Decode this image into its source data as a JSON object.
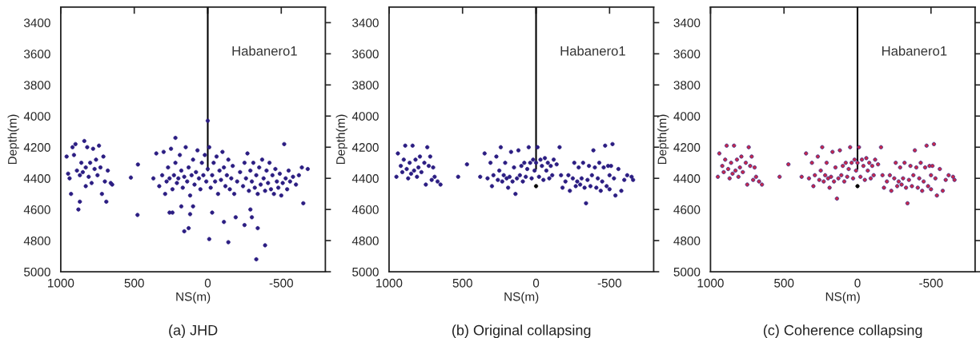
{
  "chart_data": [
    {
      "type": "scatter",
      "title": "(a) JHD",
      "xlabel": "NS(m)",
      "ylabel": "Depth(m)",
      "xlim": [
        1000,
        -800
      ],
      "ylim": [
        5000,
        3300
      ],
      "xticks": [
        1000,
        500,
        0,
        -500
      ],
      "yticks": [
        3400,
        3600,
        3800,
        4000,
        4200,
        4400,
        4600,
        4800,
        5000
      ],
      "grid": false,
      "annotations": [
        "Habanero1"
      ],
      "series": [
        {
          "type": "line",
          "color": "#000000",
          "x": [
            0,
            0
          ],
          "values": [
            3300,
            4350
          ]
        },
        {
          "color": "#2b1d82",
          "marker": "circle",
          "x": [
            960,
            950,
            940,
            930,
            920,
            910,
            900,
            890,
            880,
            870,
            860,
            850,
            840,
            830,
            820,
            810,
            800,
            790,
            780,
            770,
            760,
            750,
            740,
            730,
            720,
            710,
            700,
            690,
            680,
            660,
            650,
            830,
            870,
            523,
            475,
            478,
            370,
            350,
            330,
            310,
            300,
            290,
            280,
            270,
            260,
            250,
            240,
            230,
            220,
            210,
            200,
            190,
            180,
            170,
            160,
            150,
            140,
            130,
            120,
            110,
            100,
            90,
            80,
            70,
            60,
            50,
            40,
            30,
            20,
            10,
            0,
            -10,
            -20,
            -30,
            -40,
            -50,
            -60,
            -70,
            -80,
            -90,
            -100,
            -110,
            -120,
            -130,
            -140,
            -150,
            -160,
            -170,
            -180,
            -200,
            -220,
            -240,
            -250,
            -260,
            -270,
            -280,
            -290,
            -300,
            -310,
            -320,
            -330,
            -340,
            -350,
            -360,
            -370,
            -380,
            -390,
            -400,
            -410,
            -420,
            -430,
            -440,
            -450,
            -460,
            -470,
            -480,
            -490,
            -500,
            -510,
            -520,
            -530,
            -540,
            -550,
            -560,
            -580,
            -600,
            -620,
            -640,
            -650,
            -680,
            260,
            240,
            180,
            160,
            130,
            120,
            100,
            -10,
            -30,
            -110,
            -140,
            -190,
            -250,
            -330,
            -340,
            -390,
            -290,
            -300,
            0,
            220
          ],
          "values": [
            4260,
            4370,
            4400,
            4500,
            4200,
            4250,
            4180,
            4350,
            4600,
            4380,
            4300,
            4360,
            4160,
            4330,
            4200,
            4390,
            4300,
            4430,
            4210,
            4340,
            4280,
            4380,
            4190,
            4330,
            4500,
            4260,
            4420,
            4550,
            4350,
            4430,
            4440,
            4450,
            4550,
            4395,
            4311,
            4635,
            4400,
            4240,
            4450,
            4380,
            4230,
            4500,
            4420,
            4330,
            4400,
            4210,
            4470,
            4380,
            4300,
            4430,
            4400,
            4250,
            4350,
            4460,
            4390,
            4200,
            4420,
            4330,
            4510,
            4380,
            4280,
            4440,
            4360,
            4220,
            4400,
            4470,
            4300,
            4380,
            4250,
            4420,
            4340,
            4200,
            4460,
            4380,
            4300,
            4420,
            4260,
            4500,
            4350,
            4410,
            4230,
            4330,
            4450,
            4380,
            4280,
            4470,
            4400,
            4320,
            4500,
            4420,
            4360,
            4450,
            4300,
            4400,
            4240,
            4480,
            4350,
            4420,
            4300,
            4460,
            4380,
            4500,
            4330,
            4440,
            4280,
            4400,
            4480,
            4350,
            4430,
            4300,
            4470,
            4380,
            4500,
            4340,
            4420,
            4460,
            4370,
            4510,
            4430,
            4180,
            4400,
            4470,
            4350,
            4420,
            4390,
            4440,
            4380,
            4330,
            4560,
            4340,
            4620,
            4620,
            4580,
            4740,
            4720,
            4630,
            4580,
            4790,
            4620,
            4680,
            4810,
            4650,
            4700,
            4920,
            4720,
            4830,
            4600,
            4650,
            4030,
            4140
          ]
        }
      ]
    },
    {
      "type": "scatter",
      "title": "(b) Original collapsing",
      "xlabel": "NS(m)",
      "ylabel": "Depth(m)",
      "xlim": [
        1000,
        -800
      ],
      "ylim": [
        5000,
        3300
      ],
      "xticks": [
        1000,
        500,
        0,
        -500
      ],
      "yticks": [
        3400,
        3600,
        3800,
        4000,
        4200,
        4400,
        4600,
        4800,
        5000
      ],
      "grid": false,
      "annotations": [
        "Habanero1"
      ],
      "series": [
        {
          "type": "line",
          "color": "#000000",
          "x": [
            0,
            0
          ],
          "values": [
            3300,
            4340
          ]
        },
        {
          "color": "#2b1d82",
          "marker": "circle",
          "x": [
            950,
            940,
            920,
            910,
            900,
            890,
            880,
            870,
            860,
            850,
            840,
            830,
            820,
            810,
            800,
            790,
            780,
            760,
            750,
            740,
            730,
            720,
            710,
            700,
            690,
            670,
            650,
            530,
            470,
            380,
            350,
            330,
            310,
            300,
            290,
            270,
            260,
            250,
            240,
            230,
            220,
            210,
            200,
            190,
            180,
            170,
            160,
            150,
            140,
            130,
            120,
            110,
            100,
            90,
            80,
            70,
            60,
            50,
            40,
            30,
            20,
            10,
            0,
            -10,
            -20,
            -30,
            -40,
            -50,
            -60,
            -70,
            -80,
            -90,
            -100,
            -110,
            -120,
            -140,
            -160,
            -170,
            -180,
            -200,
            -220,
            -230,
            -250,
            -260,
            -270,
            -280,
            -290,
            -300,
            -310,
            -320,
            -330,
            -340,
            -350,
            -360,
            -370,
            -380,
            -390,
            -400,
            -410,
            -420,
            -430,
            -440,
            -450,
            -460,
            -470,
            -480,
            -490,
            -500,
            -510,
            -520,
            -530,
            -540,
            -560,
            -580,
            -620,
            -650,
            -660,
            -600,
            -500
          ],
          "values": [
            4390,
            4240,
            4320,
            4360,
            4280,
            4190,
            4340,
            4400,
            4300,
            4370,
            4190,
            4350,
            4280,
            4390,
            4330,
            4260,
            4360,
            4300,
            4440,
            4200,
            4320,
            4260,
            4410,
            4330,
            4390,
            4420,
            4440,
            4390,
            4310,
            4390,
            4240,
            4400,
            4300,
            4450,
            4380,
            4260,
            4410,
            4350,
            4200,
            4420,
            4380,
            4300,
            4400,
            4460,
            4390,
            4230,
            4420,
            4330,
            4500,
            4400,
            4220,
            4380,
            4320,
            4420,
            4300,
            4390,
            4340,
            4200,
            4300,
            4400,
            4280,
            4350,
            4300,
            4200,
            4390,
            4280,
            4320,
            4410,
            4270,
            4350,
            4300,
            4400,
            4320,
            4380,
            4280,
            4310,
            4200,
            4380,
            4460,
            4420,
            4380,
            4480,
            4400,
            4300,
            4450,
            4420,
            4330,
            4440,
            4400,
            4300,
            4460,
            4560,
            4410,
            4320,
            4450,
            4380,
            4220,
            4330,
            4460,
            4400,
            4300,
            4480,
            4420,
            4330,
            4190,
            4450,
            4320,
            4470,
            4320,
            4180,
            4400,
            4510,
            4340,
            4480,
            4380,
            4390,
            4410,
            4410,
            4380
          ]
        },
        {
          "color": "#000000",
          "marker": "circle",
          "x": [
            0
          ],
          "values": [
            4450
          ]
        }
      ]
    },
    {
      "type": "scatter",
      "title": "(c) Coherence collapsing",
      "xlabel": "NS(m)",
      "ylabel": "Depth(m)",
      "xlim": [
        1000,
        -800
      ],
      "ylim": [
        5000,
        3300
      ],
      "xticks": [
        1000,
        500,
        0,
        -500
      ],
      "yticks": [
        3400,
        3600,
        3800,
        4000,
        4200,
        4400,
        4600,
        4800,
        5000
      ],
      "grid": false,
      "annotations": [
        "Habanero1"
      ],
      "series": [
        {
          "type": "line",
          "color": "#000000",
          "x": [
            0,
            0
          ],
          "values": [
            3300,
            4340
          ]
        },
        {
          "color": "#c8284a",
          "marker": "circle",
          "x": [
            950,
            940,
            920,
            910,
            900,
            890,
            880,
            870,
            860,
            850,
            840,
            830,
            820,
            810,
            800,
            790,
            780,
            760,
            750,
            740,
            730,
            720,
            710,
            700,
            690,
            670,
            650,
            530,
            470,
            380,
            350,
            330,
            310,
            300,
            290,
            270,
            260,
            250,
            240,
            230,
            220,
            210,
            200,
            190,
            180,
            170,
            160,
            150,
            140,
            130,
            120,
            110,
            100,
            90,
            80,
            70,
            60,
            50,
            40,
            30,
            20,
            10,
            0,
            -10,
            -20,
            -30,
            -40,
            -50,
            -60,
            -70,
            -80,
            -90,
            -100,
            -110,
            -120,
            -140,
            -160,
            -170,
            -180,
            -200,
            -220,
            -230,
            -250,
            -260,
            -270,
            -280,
            -290,
            -300,
            -310,
            -320,
            -330,
            -340,
            -350,
            -360,
            -370,
            -380,
            -390,
            -400,
            -410,
            -420,
            -430,
            -440,
            -450,
            -460,
            -470,
            -480,
            -490,
            -500,
            -510,
            -520,
            -530,
            -540,
            -560,
            -580,
            -620,
            -650,
            -660,
            -600,
            -500
          ],
          "values": [
            4390,
            4240,
            4320,
            4360,
            4280,
            4190,
            4340,
            4400,
            4300,
            4370,
            4190,
            4350,
            4280,
            4390,
            4330,
            4260,
            4360,
            4300,
            4440,
            4200,
            4320,
            4260,
            4410,
            4330,
            4390,
            4420,
            4440,
            4390,
            4310,
            4390,
            4240,
            4400,
            4300,
            4450,
            4380,
            4260,
            4410,
            4350,
            4200,
            4420,
            4380,
            4300,
            4400,
            4460,
            4390,
            4230,
            4420,
            4330,
            4530,
            4400,
            4220,
            4380,
            4320,
            4420,
            4300,
            4390,
            4340,
            4200,
            4300,
            4400,
            4280,
            4350,
            4300,
            4200,
            4390,
            4280,
            4320,
            4410,
            4270,
            4350,
            4300,
            4400,
            4320,
            4380,
            4280,
            4310,
            4200,
            4380,
            4460,
            4420,
            4380,
            4480,
            4400,
            4300,
            4450,
            4420,
            4330,
            4440,
            4400,
            4300,
            4460,
            4560,
            4410,
            4320,
            4450,
            4380,
            4220,
            4330,
            4460,
            4400,
            4300,
            4480,
            4420,
            4330,
            4190,
            4450,
            4320,
            4470,
            4320,
            4180,
            4400,
            4510,
            4340,
            4480,
            4380,
            4390,
            4410,
            4410,
            4380
          ]
        },
        {
          "color": "#000000",
          "marker": "circle",
          "x": [
            0
          ],
          "values": [
            4450
          ]
        }
      ]
    }
  ]
}
